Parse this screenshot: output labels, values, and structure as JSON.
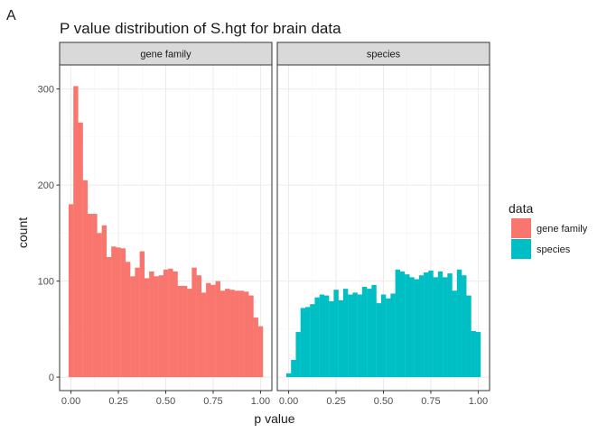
{
  "chart_data": {
    "type": "bar",
    "tag": "A",
    "title": "P value distribution of S.hgt for brain data",
    "xlabel": "p value",
    "ylabel": "count",
    "xlim": [
      -0.06,
      1.06
    ],
    "ylim": [
      -14,
      325
    ],
    "xticks": [
      0.0,
      0.25,
      0.5,
      0.75,
      1.0
    ],
    "xtick_labels": [
      "0.00",
      "0.25",
      "0.50",
      "0.75",
      "1.00"
    ],
    "yticks": [
      0,
      100,
      200,
      300
    ],
    "ytick_labels": [
      "0",
      "100",
      "200",
      "300"
    ],
    "grid": true,
    "bin_width": 0.025,
    "x": [
      0.0,
      0.025,
      0.05,
      0.075,
      0.1,
      0.125,
      0.15,
      0.175,
      0.2,
      0.225,
      0.25,
      0.275,
      0.3,
      0.325,
      0.35,
      0.375,
      0.4,
      0.425,
      0.45,
      0.475,
      0.5,
      0.525,
      0.55,
      0.575,
      0.6,
      0.625,
      0.65,
      0.675,
      0.7,
      0.725,
      0.75,
      0.775,
      0.8,
      0.825,
      0.85,
      0.875,
      0.9,
      0.925,
      0.95,
      0.975,
      1.0
    ],
    "series": [
      {
        "name": "gene family",
        "panel": "gene family",
        "color": "#F8766D",
        "values": [
          180,
          303,
          265,
          205,
          170,
          170,
          150,
          158,
          125,
          136,
          135,
          134,
          120,
          105,
          114,
          131,
          103,
          110,
          105,
          106,
          112,
          113,
          110,
          95,
          95,
          92,
          114,
          106,
          88,
          98,
          96,
          100,
          90,
          92,
          91,
          90,
          90,
          89,
          85,
          62,
          53
        ]
      },
      {
        "name": "species",
        "panel": "species",
        "color": "#00BFC4",
        "values": [
          4,
          18,
          47,
          72,
          73,
          76,
          83,
          86,
          85,
          79,
          91,
          80,
          92,
          86,
          88,
          86,
          94,
          92,
          96,
          77,
          86,
          82,
          87,
          112,
          110,
          107,
          104,
          102,
          106,
          109,
          111,
          104,
          110,
          104,
          108,
          90,
          112,
          106,
          85,
          48,
          47
        ]
      }
    ],
    "facets": [
      "gene family",
      "species"
    ],
    "legend": {
      "title": "data",
      "position": "right",
      "entries": [
        {
          "label": "gene family",
          "color": "#F8766D"
        },
        {
          "label": "species",
          "color": "#00BFC4"
        }
      ]
    }
  }
}
